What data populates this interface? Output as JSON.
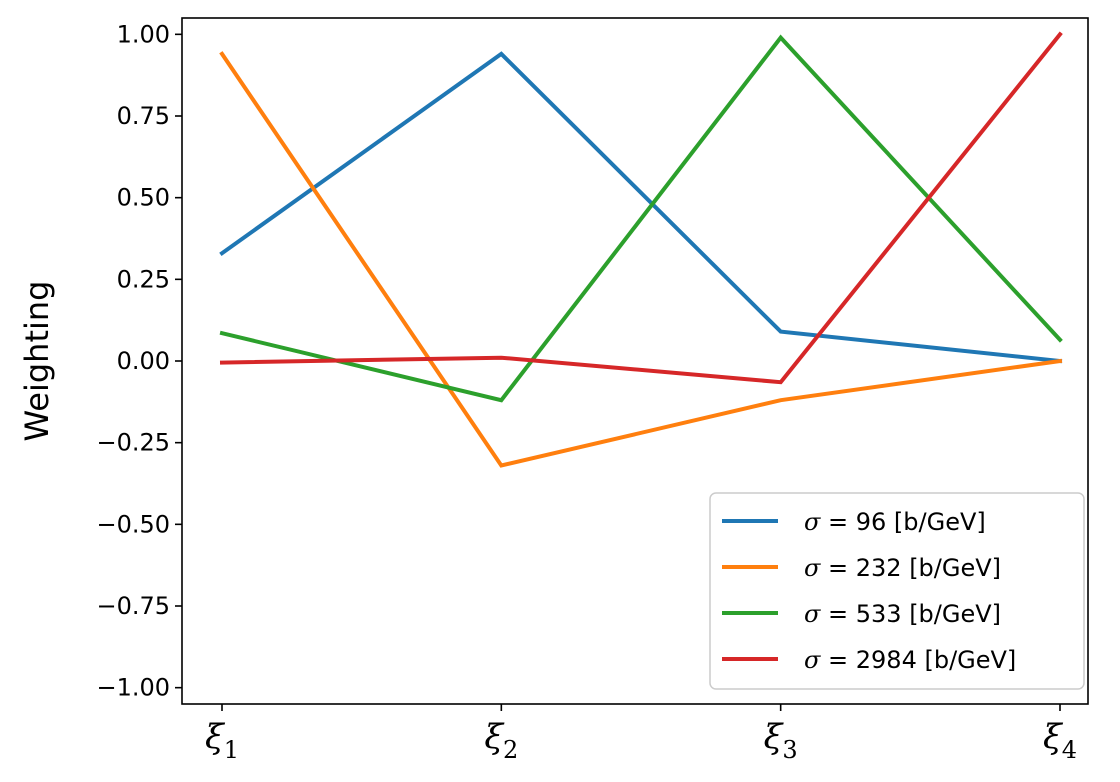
{
  "chart_data": {
    "type": "line",
    "title": "",
    "xlabel": "",
    "ylabel": "Weighting",
    "categories": [
      {
        "symbol": "ξ",
        "sub": "1"
      },
      {
        "symbol": "ξ",
        "sub": "2"
      },
      {
        "symbol": "ξ",
        "sub": "3"
      },
      {
        "symbol": "ξ",
        "sub": "4"
      }
    ],
    "ylim": [
      -1.05,
      1.05
    ],
    "yticks": [
      "1.00",
      "0.75",
      "0.50",
      "0.25",
      "0.00",
      "−0.25",
      "−0.50",
      "−0.75",
      "−1.00"
    ],
    "ytick_values": [
      1.0,
      0.75,
      0.5,
      0.25,
      0.0,
      -0.25,
      -0.5,
      -0.75,
      -1.0
    ],
    "grid": false,
    "legend_position": "bottom-right",
    "series": [
      {
        "name": "σ = 96 [b/GeV]",
        "name_symbol": "σ",
        "name_rest": " = 96 [b/GeV]",
        "color": "#1f77b4",
        "values": [
          0.33,
          0.94,
          0.09,
          0.0
        ]
      },
      {
        "name": "σ = 232 [b/GeV]",
        "name_symbol": "σ",
        "name_rest": " = 232 [b/GeV]",
        "color": "#ff7f0e",
        "values": [
          0.94,
          -0.32,
          -0.12,
          0.0
        ]
      },
      {
        "name": "σ = 533 [b/GeV]",
        "name_symbol": "σ",
        "name_rest": " = 533 [b/GeV]",
        "color": "#2ca02c",
        "values": [
          0.085,
          -0.12,
          0.99,
          0.065
        ]
      },
      {
        "name": "σ = 2984 [b/GeV]",
        "name_symbol": "σ",
        "name_rest": " = 2984 [b/GeV]",
        "color": "#d62728",
        "values": [
          -0.005,
          0.01,
          -0.065,
          1.0
        ]
      }
    ]
  }
}
